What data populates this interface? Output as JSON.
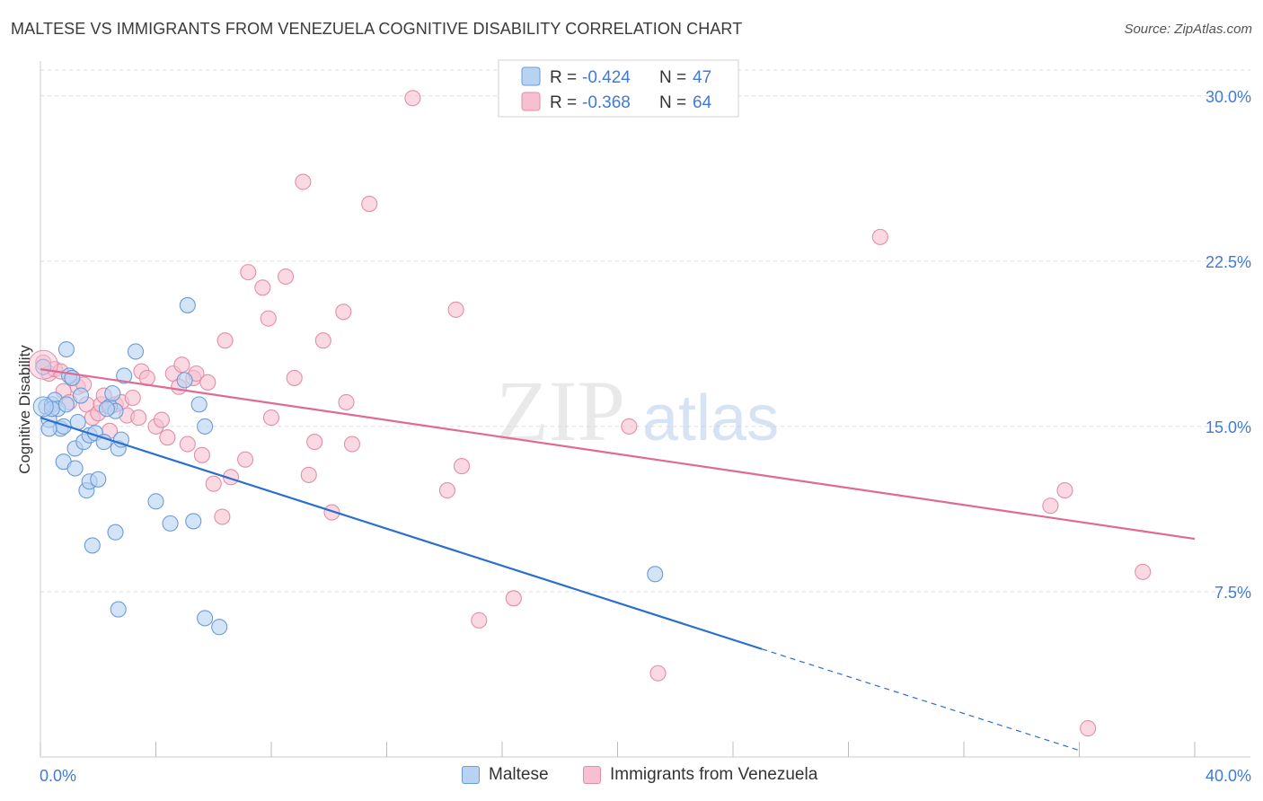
{
  "header": {
    "title": "MALTESE VS IMMIGRANTS FROM VENEZUELA COGNITIVE DISABILITY CORRELATION CHART",
    "source": "Source: ZipAtlas.com"
  },
  "watermark": {
    "zip": "ZIP",
    "atlas": "atlas"
  },
  "colors": {
    "blue_fill": "#b8d2f2",
    "blue_stroke": "#6b9bd8",
    "blue_line": "#2a6fd0",
    "pink_fill": "#f7c0d0",
    "pink_stroke": "#e38ea8",
    "pink_line": "#e06a94",
    "tick_label": "#3f7bd6"
  },
  "chart_data": {
    "type": "scatter",
    "title": "MALTESE VS IMMIGRANTS FROM VENEZUELA COGNITIVE DISABILITY CORRELATION CHART",
    "ylabel": "Cognitive Disability",
    "xlim": [
      0,
      40
    ],
    "ylim": [
      0,
      31.5
    ],
    "x_tick_labels": [
      "0.0%",
      "40.0%"
    ],
    "y_ticks": [
      7.5,
      15.0,
      22.5,
      30.0
    ],
    "y_tick_labels": [
      "7.5%",
      "15.0%",
      "22.5%",
      "30.0%"
    ],
    "grid": "horizontal dashed",
    "legend_placement": "top-center",
    "legend": [
      {
        "series": "Maltese",
        "r_label": "R = ",
        "r_value": "-0.424",
        "n_label": "N = ",
        "n_value": "47"
      },
      {
        "series": "Immigrants from Venezuela",
        "r_label": "R = ",
        "r_value": "-0.368",
        "n_label": "N = ",
        "n_value": "64"
      }
    ],
    "series": [
      {
        "name": "Maltese",
        "color": "#6b9bd8",
        "trend": {
          "x": [
            0,
            25
          ],
          "y": [
            15.4,
            4.9
          ],
          "dashed_extension": {
            "x": [
              25,
              36
            ],
            "y": [
              4.9,
              0.3
            ]
          }
        },
        "points": [
          [
            0.1,
            17.7
          ],
          [
            0.2,
            15.9
          ],
          [
            0.3,
            15.3
          ],
          [
            0.4,
            16.0
          ],
          [
            0.5,
            16.2
          ],
          [
            0.6,
            15.8
          ],
          [
            0.7,
            14.9
          ],
          [
            0.8,
            15.0
          ],
          [
            0.8,
            13.4
          ],
          [
            0.9,
            18.5
          ],
          [
            1.0,
            17.3
          ],
          [
            1.2,
            14.0
          ],
          [
            1.2,
            13.1
          ],
          [
            1.3,
            15.2
          ],
          [
            1.4,
            16.4
          ],
          [
            1.5,
            14.3
          ],
          [
            1.6,
            12.1
          ],
          [
            1.7,
            12.5
          ],
          [
            1.7,
            14.6
          ],
          [
            1.8,
            9.6
          ],
          [
            1.9,
            14.7
          ],
          [
            2.0,
            12.6
          ],
          [
            2.2,
            14.3
          ],
          [
            2.4,
            15.9
          ],
          [
            2.5,
            16.5
          ],
          [
            2.6,
            15.7
          ],
          [
            2.6,
            10.2
          ],
          [
            2.7,
            14.0
          ],
          [
            2.7,
            6.7
          ],
          [
            2.8,
            14.4
          ],
          [
            2.9,
            17.3
          ],
          [
            3.3,
            18.4
          ],
          [
            4.0,
            11.6
          ],
          [
            4.5,
            10.6
          ],
          [
            5.0,
            17.1
          ],
          [
            5.1,
            20.5
          ],
          [
            5.3,
            10.7
          ],
          [
            5.5,
            16.0
          ],
          [
            5.7,
            15.0
          ],
          [
            5.7,
            6.3
          ],
          [
            6.2,
            5.9
          ],
          [
            21.3,
            8.3
          ],
          [
            0.4,
            15.8
          ],
          [
            0.9,
            16.0
          ],
          [
            1.1,
            17.2
          ],
          [
            2.3,
            15.8
          ],
          [
            0.3,
            14.9
          ]
        ]
      },
      {
        "name": "Immigrants from Venezuela",
        "color": "#e38ea8",
        "trend": {
          "x": [
            0,
            40
          ],
          "y": [
            17.6,
            9.9
          ]
        },
        "points": [
          [
            0.1,
            17.9
          ],
          [
            0.3,
            17.4
          ],
          [
            0.5,
            17.6
          ],
          [
            0.7,
            17.5
          ],
          [
            0.8,
            16.6
          ],
          [
            1.0,
            16.1
          ],
          [
            1.1,
            17.2
          ],
          [
            1.3,
            16.8
          ],
          [
            1.5,
            16.9
          ],
          [
            1.6,
            16.0
          ],
          [
            1.8,
            15.4
          ],
          [
            2.0,
            15.6
          ],
          [
            2.1,
            16.0
          ],
          [
            2.2,
            16.4
          ],
          [
            2.4,
            14.8
          ],
          [
            2.6,
            16.0
          ],
          [
            2.8,
            16.1
          ],
          [
            3.0,
            15.5
          ],
          [
            3.2,
            16.3
          ],
          [
            3.4,
            15.4
          ],
          [
            3.5,
            17.5
          ],
          [
            3.7,
            17.2
          ],
          [
            4.0,
            15.0
          ],
          [
            4.2,
            15.3
          ],
          [
            4.4,
            14.5
          ],
          [
            4.6,
            17.4
          ],
          [
            4.8,
            16.8
          ],
          [
            4.9,
            17.8
          ],
          [
            5.1,
            14.2
          ],
          [
            5.3,
            17.2
          ],
          [
            5.4,
            17.4
          ],
          [
            5.6,
            13.7
          ],
          [
            5.8,
            17.0
          ],
          [
            6.0,
            12.4
          ],
          [
            6.3,
            10.9
          ],
          [
            6.4,
            18.9
          ],
          [
            6.6,
            12.7
          ],
          [
            7.1,
            13.5
          ],
          [
            7.2,
            22.0
          ],
          [
            7.7,
            21.3
          ],
          [
            7.9,
            19.9
          ],
          [
            8.0,
            15.4
          ],
          [
            8.5,
            21.8
          ],
          [
            8.8,
            17.2
          ],
          [
            9.1,
            26.1
          ],
          [
            9.3,
            12.8
          ],
          [
            9.5,
            14.3
          ],
          [
            9.8,
            18.9
          ],
          [
            10.1,
            11.1
          ],
          [
            10.5,
            20.2
          ],
          [
            10.6,
            16.1
          ],
          [
            10.8,
            14.2
          ],
          [
            11.4,
            25.1
          ],
          [
            12.9,
            29.9
          ],
          [
            14.1,
            12.1
          ],
          [
            14.4,
            20.3
          ],
          [
            14.6,
            13.2
          ],
          [
            15.2,
            6.2
          ],
          [
            16.4,
            7.2
          ],
          [
            20.4,
            15.0
          ],
          [
            21.4,
            3.8
          ],
          [
            29.1,
            23.6
          ],
          [
            35.0,
            11.4
          ],
          [
            35.5,
            12.1
          ]
        ],
        "extra_points": [
          [
            38.2,
            8.4
          ],
          [
            36.3,
            1.3
          ]
        ]
      }
    ]
  }
}
